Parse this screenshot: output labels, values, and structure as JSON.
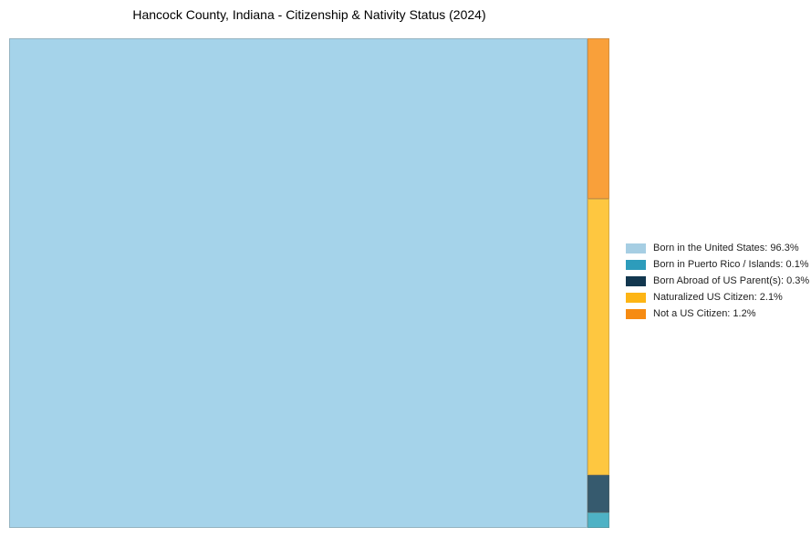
{
  "title": "Hancock County, Indiana - Citizenship & Nativity Status (2024)",
  "chart_data": {
    "type": "treemap",
    "title": "Hancock County, Indiana - Citizenship & Nativity Status (2024)",
    "categories": [
      "Born in the United States",
      "Born in Puerto Rico / Islands",
      "Born Abroad of US Parent(s)",
      "Naturalized US Citizen",
      "Not a US Citizen"
    ],
    "values": [
      96.3,
      0.1,
      0.3,
      2.1,
      1.2
    ],
    "unit": "percent",
    "legend_position": "right",
    "colors": [
      "#a6cee3",
      "#2d9cbb",
      "#12374f",
      "#fdb515",
      "#f68b12"
    ],
    "tile_colors": [
      "#a5d3ea",
      "#4eb2c5",
      "#365a6e",
      "#fec740",
      "#f9a03a"
    ]
  },
  "legend": {
    "items": [
      {
        "label": "Born in the United States: 96.3%"
      },
      {
        "label": "Born in Puerto Rico / Islands: 0.1%"
      },
      {
        "label": "Born Abroad of US Parent(s): 0.3%"
      },
      {
        "label": "Naturalized US Citizen: 2.1%"
      },
      {
        "label": "Not a US Citizen: 1.2%"
      }
    ]
  }
}
